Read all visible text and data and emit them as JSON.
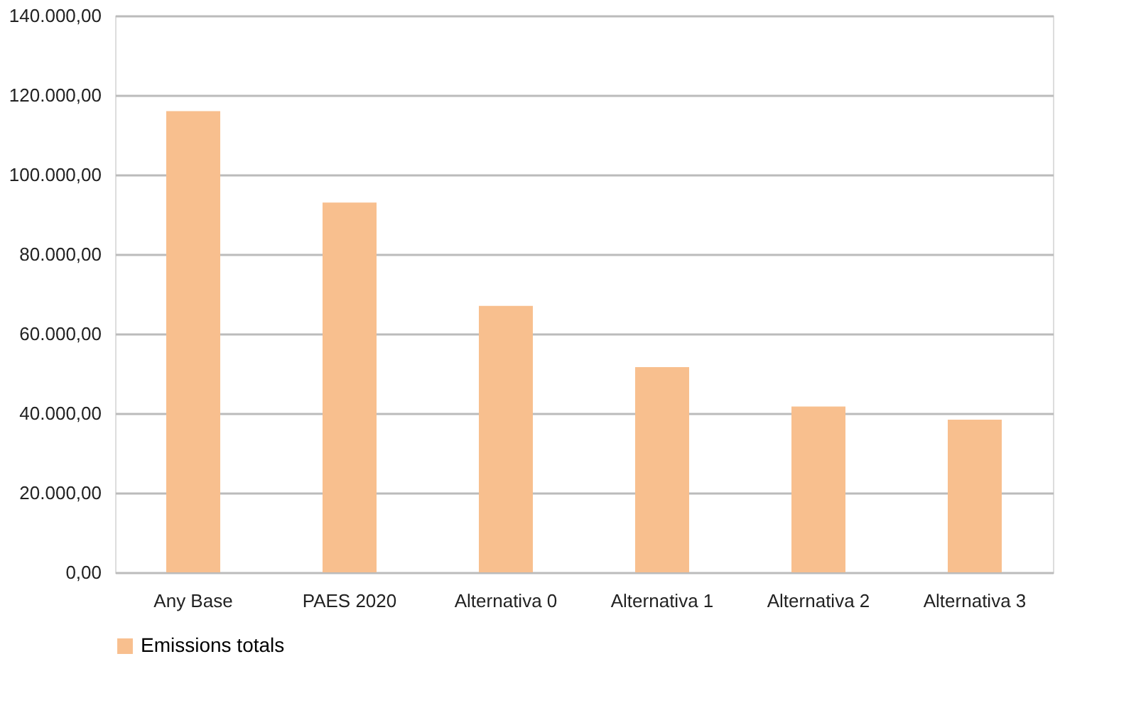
{
  "chart_data": {
    "type": "bar",
    "categories": [
      "Any Base",
      "PAES 2020",
      "Alternativa 0",
      "Alternativa 1",
      "Alternativa 2",
      "Alternativa 3"
    ],
    "series": [
      {
        "name": "Emissions totals",
        "color": "#f8bf8e",
        "values": [
          116000,
          93000,
          67000,
          51600,
          41700,
          38400
        ]
      }
    ],
    "ylim": [
      0,
      140000
    ],
    "yticks": [
      {
        "value": 0,
        "label": "0,00"
      },
      {
        "value": 20000,
        "label": "20.000,00"
      },
      {
        "value": 40000,
        "label": "40.000,00"
      },
      {
        "value": 60000,
        "label": "60.000,00"
      },
      {
        "value": 80000,
        "label": "80.000,00"
      },
      {
        "value": 100000,
        "label": "100.000,00"
      },
      {
        "value": 120000,
        "label": "120.000,00"
      },
      {
        "value": 140000,
        "label": "140.000,00"
      }
    ],
    "grid": "y",
    "legend": "bottom"
  }
}
